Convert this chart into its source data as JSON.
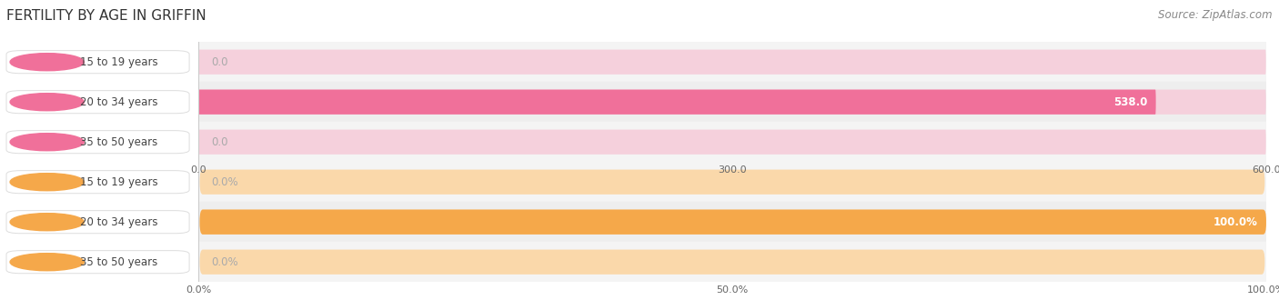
{
  "title": "FERTILITY BY AGE IN GRIFFIN",
  "source": "Source: ZipAtlas.com",
  "top_chart": {
    "categories": [
      "15 to 19 years",
      "20 to 34 years",
      "35 to 50 years"
    ],
    "values": [
      0.0,
      538.0,
      0.0
    ],
    "max_value": 600.0,
    "tick_values": [
      0.0,
      300.0,
      600.0
    ],
    "tick_labels": [
      "0.0",
      "300.0",
      "600.0"
    ],
    "bar_color": "#F0709A",
    "bar_bg_color": "#F5D0DC",
    "value_color_inside": "#ffffff",
    "value_color_outside": "#999999"
  },
  "bottom_chart": {
    "categories": [
      "15 to 19 years",
      "20 to 34 years",
      "35 to 50 years"
    ],
    "values": [
      0.0,
      100.0,
      0.0
    ],
    "max_value": 100.0,
    "tick_values": [
      0.0,
      50.0,
      100.0
    ],
    "tick_labels": [
      "0.0%",
      "50.0%",
      "100.0%"
    ],
    "bar_color": "#F5A84A",
    "bar_bg_color": "#FAD8AA",
    "value_color_inside": "#ffffff",
    "value_color_outside": "#999999"
  },
  "background_color": "#ffffff",
  "row_bg_even": "#f4f4f4",
  "row_bg_odd": "#eeeeee",
  "grid_color": "#cccccc",
  "label_font_size": 8.5,
  "title_font_size": 11,
  "tick_font_size": 8,
  "value_font_size": 8.5,
  "bar_height": 0.62,
  "label_box_edge_color": "#dddddd"
}
